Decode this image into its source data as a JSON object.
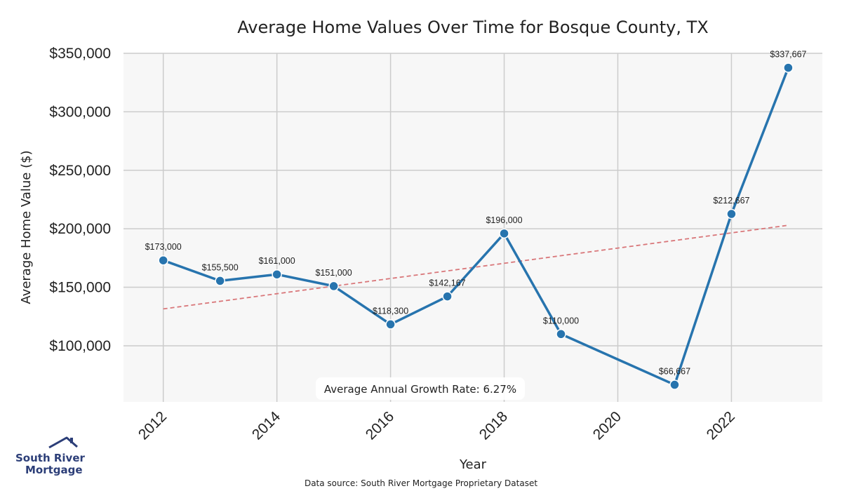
{
  "chart_data": {
    "type": "line",
    "title": "Average Home Values Over Time for Bosque County, TX",
    "xlabel": "Year",
    "ylabel": "Average Home Value ($)",
    "x": [
      2012,
      2013,
      2014,
      2015,
      2016,
      2017,
      2018,
      2019,
      2020,
      2021,
      2022,
      2023
    ],
    "series": [
      {
        "name": "Average Home Value",
        "x": [
          2012,
          2013,
          2014,
          2015,
          2016,
          2017,
          2018,
          2019,
          2021,
          2022,
          2023
        ],
        "values": [
          173000,
          155500,
          161000,
          151000,
          118300,
          142167,
          196000,
          110000,
          66667,
          212667,
          337667
        ],
        "labels": [
          "$173,000",
          "$155,500",
          "$161,000",
          "$151,000",
          "$118,300",
          "$142,167",
          "$196,000",
          "$110,000",
          "$66,667",
          "$212,667",
          "$337,667"
        ],
        "color": "#2774ae"
      },
      {
        "name": "Trend",
        "style": "dashed",
        "x": [
          2012,
          2023
        ],
        "values": [
          131500,
          203000
        ],
        "color": "#d9777a"
      }
    ],
    "xticks": [
      2012,
      2014,
      2016,
      2018,
      2020,
      2022
    ],
    "xtick_labels": [
      "2012",
      "2014",
      "2016",
      "2018",
      "2020",
      "2022"
    ],
    "yticks": [
      100000,
      150000,
      200000,
      250000,
      300000,
      350000
    ],
    "ytick_labels": [
      "$100,000",
      "$150,000",
      "$200,000",
      "$250,000",
      "$300,000",
      "$350,000"
    ],
    "ylim": [
      52000,
      350000
    ],
    "xlim": [
      2011.3,
      2023.6
    ],
    "grid": true,
    "background": "#f7f7f7",
    "grid_color": "#cccccc"
  },
  "annotation": {
    "growth_rate": "Average Annual Growth Rate: 6.27%"
  },
  "footer": {
    "source": "Data source: South River Mortgage Proprietary Dataset"
  },
  "logo": {
    "line1": "South River",
    "line2": "Mortgage"
  }
}
